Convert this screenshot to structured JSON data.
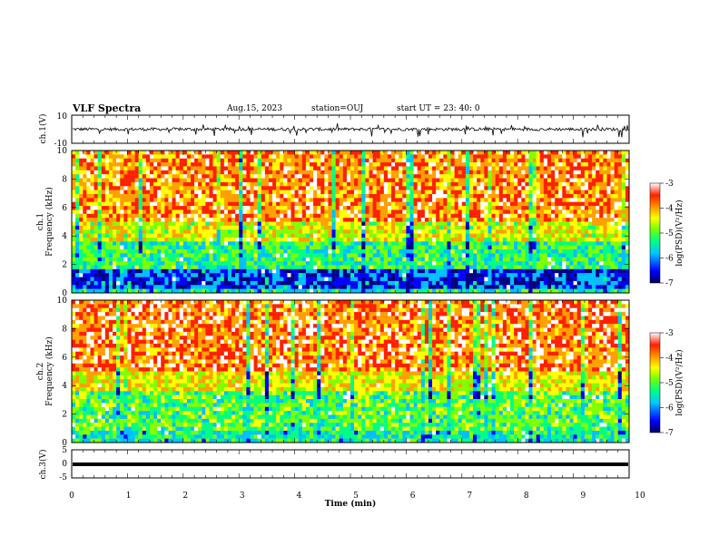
{
  "header": {
    "title": "VLF Spectra",
    "date": "Aug.15, 2023",
    "station": "station=OUJ",
    "start": "start  UT  =   23: 40: 0"
  },
  "chart_data": [
    {
      "type": "line",
      "panel": "ch1-waveform",
      "ylabel": "ch.1(V)",
      "ylim": [
        -10,
        10
      ],
      "yticks": [
        "10",
        "-10"
      ],
      "note": "noisy waveform centered near 0 V"
    },
    {
      "type": "heatmap",
      "panel": "ch1-spectrogram",
      "ylabel": "ch.1\nFrequency  (kHz)",
      "ylim": [
        0,
        10
      ],
      "yticks": [
        "0",
        "2",
        "4",
        "6",
        "8",
        "10"
      ],
      "colorbar": {
        "label": "log(PSD)(V²/Hz)",
        "ticks": [
          "-3",
          "-4",
          "-5",
          "-6",
          "-7"
        ],
        "range": [
          -7,
          -3
        ]
      },
      "bands": [
        {
          "fmin": 0,
          "fmax": 0.4,
          "level": -5.6
        },
        {
          "fmin": 0.4,
          "fmax": 1.8,
          "level": -6.4
        },
        {
          "fmin": 1.8,
          "fmax": 3.5,
          "level": -5.4
        },
        {
          "fmin": 3.5,
          "fmax": 5.0,
          "level": -4.6
        },
        {
          "fmin": 5.0,
          "fmax": 10,
          "level": -3.8
        }
      ]
    },
    {
      "type": "heatmap",
      "panel": "ch2-spectrogram",
      "ylabel": "ch.2\nFrequency  (kHz)",
      "ylim": [
        0,
        10
      ],
      "yticks": [
        "0",
        "2",
        "4",
        "6",
        "8",
        "10"
      ],
      "colorbar": {
        "label": "log(PSD)(V²/Hz)",
        "ticks": [
          "-3",
          "-4",
          "-5",
          "-6",
          "-7"
        ],
        "range": [
          -7,
          -3
        ]
      },
      "bands": [
        {
          "fmin": 0,
          "fmax": 0.8,
          "level": -5.6
        },
        {
          "fmin": 0.8,
          "fmax": 3.5,
          "level": -5.2
        },
        {
          "fmin": 3.5,
          "fmax": 5.0,
          "level": -4.5
        },
        {
          "fmin": 5.0,
          "fmax": 10,
          "level": -3.7
        }
      ]
    },
    {
      "type": "line",
      "panel": "ch3-waveform",
      "ylabel": "ch.3(V)",
      "ylim": [
        -5,
        5
      ],
      "yticks": [
        "5",
        "0",
        "-5"
      ],
      "note": "flat trace slightly above -1 V"
    }
  ],
  "xaxis": {
    "label": "Time  (min)",
    "ticks": [
      "0",
      "1",
      "2",
      "3",
      "4",
      "5",
      "6",
      "7",
      "8",
      "9",
      "10"
    ],
    "xlim": [
      0,
      10
    ]
  },
  "colors": {
    "colormap": [
      "#000080",
      "#0000ff",
      "#00c0ff",
      "#00ff80",
      "#80ff00",
      "#ffff00",
      "#ffa000",
      "#ff2000",
      "#ffffff"
    ]
  }
}
